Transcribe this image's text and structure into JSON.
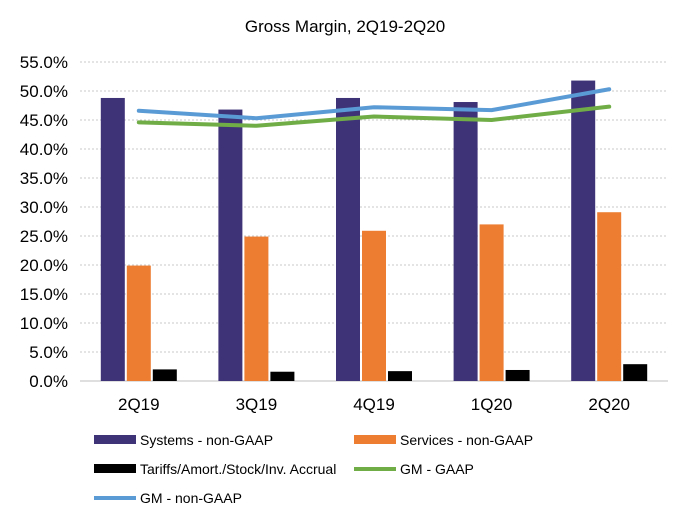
{
  "chart_data": {
    "type": "bar",
    "title": "Gross Margin,  2Q19-2Q20",
    "categories": [
      "2Q19",
      "3Q19",
      "4Q19",
      "1Q20",
      "2Q20"
    ],
    "ylim": [
      0,
      55
    ],
    "yticks": [
      0,
      5,
      10,
      15,
      20,
      25,
      30,
      35,
      40,
      45,
      50,
      55
    ],
    "ytick_labels": [
      "0.0%",
      "5.0%",
      "10.0%",
      "15.0%",
      "20.0%",
      "25.0%",
      "30.0%",
      "35.0%",
      "40.0%",
      "45.0%",
      "50.0%",
      "55.0%"
    ],
    "grid": true,
    "xlabel": "",
    "ylabel": "",
    "legend_position": "bottom",
    "series": [
      {
        "name": "Systems - non-GAAP",
        "kind": "bar",
        "color": "#3f3378",
        "values": [
          48.8,
          46.8,
          48.8,
          48.1,
          51.8
        ]
      },
      {
        "name": "Services - non-GAAP",
        "kind": "bar",
        "color": "#ed7d31",
        "values": [
          19.9,
          24.9,
          25.9,
          27.0,
          29.1
        ]
      },
      {
        "name": "Tariffs/Amort./Stock/Inv. Accrual",
        "kind": "bar",
        "color": "#000000",
        "values": [
          2.0,
          1.6,
          1.7,
          1.9,
          2.9
        ]
      },
      {
        "name": "GM - GAAP",
        "kind": "line",
        "color": "#70ad47",
        "values": [
          44.6,
          44.0,
          45.6,
          45.0,
          47.3
        ]
      },
      {
        "name": "GM - non-GAAP",
        "kind": "line",
        "color": "#5b9bd5",
        "values": [
          46.6,
          45.3,
          47.2,
          46.7,
          50.3
        ]
      }
    ]
  }
}
